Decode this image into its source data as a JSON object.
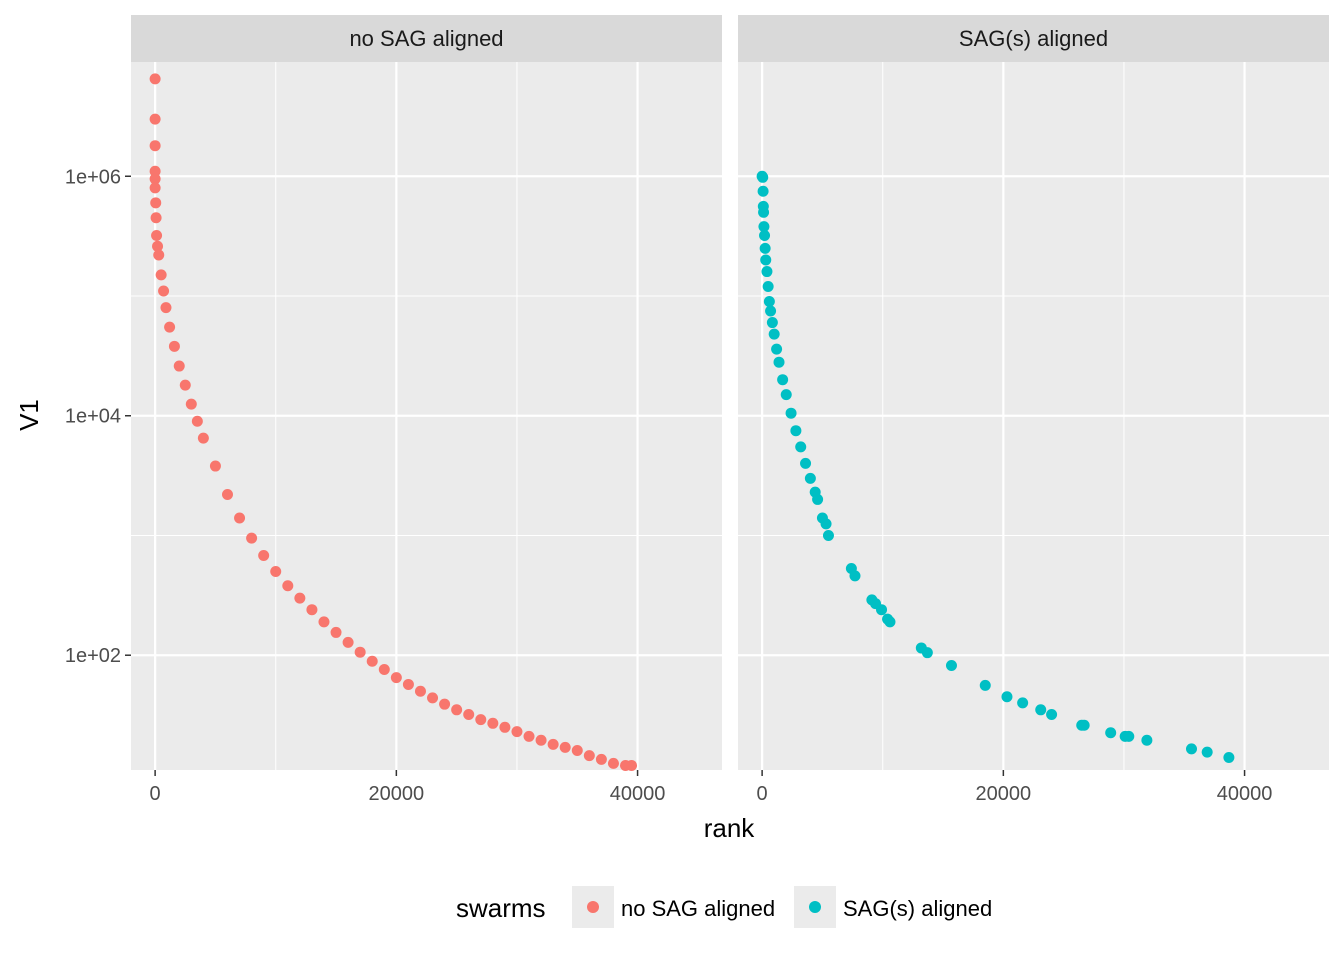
{
  "chart_data": {
    "type": "scatter",
    "xlabel": "rank",
    "ylabel": "V1",
    "y_scale": "log10",
    "xlim": [
      -2000,
      47000
    ],
    "ylim": [
      11,
      9000000
    ],
    "x_ticks": [
      0,
      20000,
      40000
    ],
    "x_tick_labels": [
      "0",
      "20000",
      "40000"
    ],
    "y_ticks": [
      100,
      10000,
      1000000
    ],
    "y_tick_labels": [
      "1e+02",
      "1e+04",
      "1e+06"
    ],
    "grid": true,
    "legend": {
      "title": "swarms",
      "position": "bottom",
      "entries": [
        "no SAG aligned",
        "SAG(s) aligned"
      ]
    },
    "facets": [
      {
        "label": "no SAG aligned",
        "color": "#F8766D",
        "points": [
          [
            0,
            6500000
          ],
          [
            0,
            3000000
          ],
          [
            0,
            1800000
          ],
          [
            0,
            1100000
          ],
          [
            0,
            950000
          ],
          [
            0,
            800000
          ],
          [
            50,
            600000
          ],
          [
            80,
            450000
          ],
          [
            120,
            320000
          ],
          [
            200,
            260000
          ],
          [
            300,
            220000
          ],
          [
            500,
            150000
          ],
          [
            700,
            110000
          ],
          [
            900,
            80000
          ],
          [
            1200,
            55000
          ],
          [
            1600,
            38000
          ],
          [
            2000,
            26000
          ],
          [
            2500,
            18000
          ],
          [
            3000,
            12500
          ],
          [
            3500,
            9000
          ],
          [
            4000,
            6500
          ],
          [
            5000,
            3800
          ],
          [
            6000,
            2200
          ],
          [
            7000,
            1400
          ],
          [
            8000,
            950
          ],
          [
            9000,
            680
          ],
          [
            10000,
            500
          ],
          [
            11000,
            380
          ],
          [
            12000,
            300
          ],
          [
            13000,
            240
          ],
          [
            14000,
            190
          ],
          [
            15000,
            155
          ],
          [
            16000,
            128
          ],
          [
            17000,
            106
          ],
          [
            18000,
            89
          ],
          [
            19000,
            76
          ],
          [
            20000,
            65
          ],
          [
            21000,
            57
          ],
          [
            22000,
            50
          ],
          [
            23000,
            44
          ],
          [
            24000,
            39
          ],
          [
            25000,
            35
          ],
          [
            26000,
            32
          ],
          [
            27000,
            29
          ],
          [
            28000,
            27
          ],
          [
            29000,
            25
          ],
          [
            30000,
            23
          ],
          [
            31000,
            21
          ],
          [
            32000,
            19.5
          ],
          [
            33000,
            18
          ],
          [
            34000,
            17
          ],
          [
            35000,
            16
          ],
          [
            36000,
            14.5
          ],
          [
            37000,
            13.5
          ],
          [
            38000,
            12.5
          ],
          [
            39000,
            12
          ],
          [
            39500,
            12
          ]
        ]
      },
      {
        "label": "SAG(s) aligned",
        "color": "#00BFC4",
        "points": [
          [
            0,
            1000000
          ],
          [
            50,
            980000
          ],
          [
            80,
            750000
          ],
          [
            100,
            560000
          ],
          [
            120,
            500000
          ],
          [
            150,
            380000
          ],
          [
            200,
            320000
          ],
          [
            250,
            250000
          ],
          [
            300,
            200000
          ],
          [
            400,
            160000
          ],
          [
            500,
            120000
          ],
          [
            600,
            90000
          ],
          [
            700,
            75000
          ],
          [
            850,
            60000
          ],
          [
            1000,
            48000
          ],
          [
            1200,
            36000
          ],
          [
            1400,
            28000
          ],
          [
            1700,
            20000
          ],
          [
            2000,
            15000
          ],
          [
            2400,
            10500
          ],
          [
            2800,
            7500
          ],
          [
            3200,
            5500
          ],
          [
            3600,
            4000
          ],
          [
            4000,
            3000
          ],
          [
            4400,
            2300
          ],
          [
            4600,
            2000
          ],
          [
            5000,
            1400
          ],
          [
            5300,
            1250
          ],
          [
            5500,
            1000
          ],
          [
            7400,
            530
          ],
          [
            7700,
            460
          ],
          [
            9100,
            290
          ],
          [
            9400,
            270
          ],
          [
            9900,
            240
          ],
          [
            10400,
            200
          ],
          [
            10600,
            190
          ],
          [
            13200,
            115
          ],
          [
            13700,
            105
          ],
          [
            15700,
            82
          ],
          [
            18500,
            56
          ],
          [
            20300,
            45
          ],
          [
            21600,
            40
          ],
          [
            23100,
            35
          ],
          [
            24000,
            32
          ],
          [
            26500,
            26
          ],
          [
            26700,
            26
          ],
          [
            28900,
            22.5
          ],
          [
            30100,
            21
          ],
          [
            30400,
            21
          ],
          [
            31900,
            19.5
          ],
          [
            35600,
            16.5
          ],
          [
            36900,
            15.5
          ],
          [
            38700,
            14
          ]
        ]
      }
    ]
  }
}
